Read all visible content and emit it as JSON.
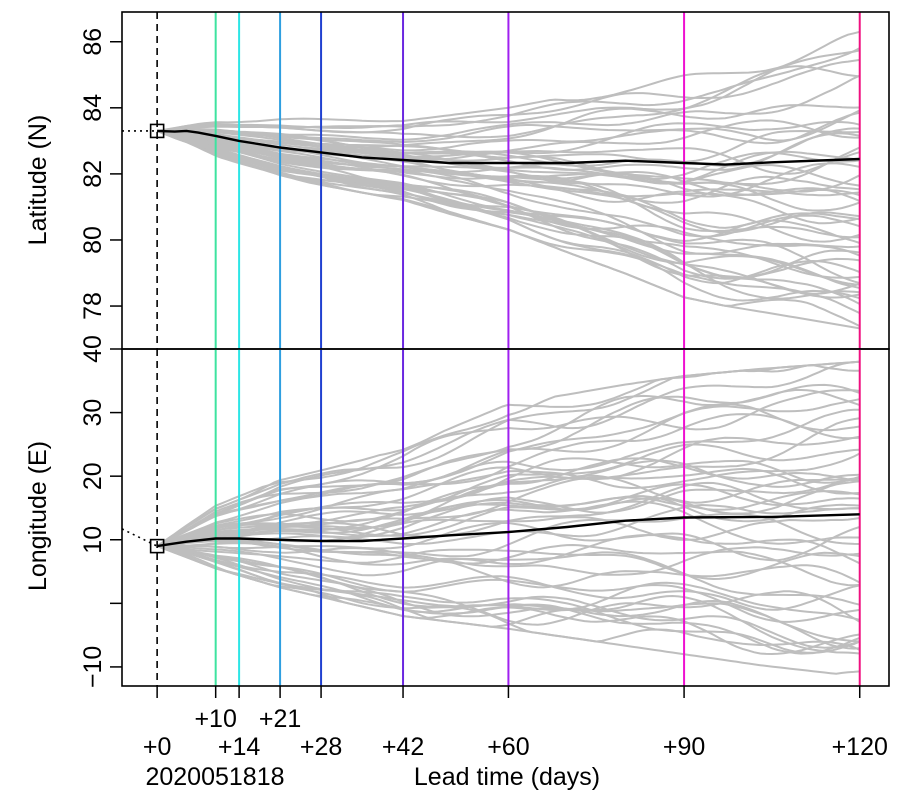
{
  "chart_data": {
    "type": "line",
    "x_label": "Lead time (days)",
    "start_date_label": "2020051818",
    "x_range": [
      -6,
      125
    ],
    "lead_times": [
      {
        "lead": 0,
        "label": "+0",
        "row": 1,
        "color": "#000000",
        "dashed": true
      },
      {
        "lead": 10,
        "label": "+10",
        "row": 0,
        "color": "#3ee3a0"
      },
      {
        "lead": 14,
        "label": "+14",
        "row": 1,
        "color": "#2ce5e5"
      },
      {
        "lead": 21,
        "label": "+21",
        "row": 0,
        "color": "#2f9fe0"
      },
      {
        "lead": 28,
        "label": "+28",
        "row": 1,
        "color": "#2040d0"
      },
      {
        "lead": 42,
        "label": "+42",
        "row": 1,
        "color": "#6a28e0"
      },
      {
        "lead": 60,
        "label": "+60",
        "row": 1,
        "color": "#a020f0"
      },
      {
        "lead": 90,
        "label": "+90",
        "row": 1,
        "color": "#ee10d0"
      },
      {
        "lead": 120,
        "label": "+120",
        "row": 1,
        "color": "#f01080"
      }
    ],
    "ensemble_color": "#bebebe",
    "mean_color": "#000000",
    "panels": [
      {
        "id": "latitude",
        "y_label": "Latitude (N)",
        "y_range": [
          76.7,
          86.9
        ],
        "y_ticks": [
          78,
          80,
          82,
          84,
          86
        ],
        "ensemble_min": [
          [
            0,
            83.3
          ],
          [
            10,
            82.5
          ],
          [
            21,
            81.9
          ],
          [
            42,
            81.2
          ],
          [
            60,
            80.2
          ],
          [
            90,
            77.8
          ],
          [
            120,
            76.9
          ]
        ],
        "ensemble_max": [
          [
            0,
            83.3
          ],
          [
            10,
            83.6
          ],
          [
            21,
            83.7
          ],
          [
            42,
            83.6
          ],
          [
            60,
            84.0
          ],
          [
            90,
            85.0
          ],
          [
            120,
            86.3
          ]
        ],
        "mean": [
          [
            0,
            83.3
          ],
          [
            3,
            83.28
          ],
          [
            5,
            83.3
          ],
          [
            7,
            83.25
          ],
          [
            10,
            83.15
          ],
          [
            14,
            83.0
          ],
          [
            21,
            82.8
          ],
          [
            28,
            82.65
          ],
          [
            35,
            82.5
          ],
          [
            42,
            82.42
          ],
          [
            50,
            82.33
          ],
          [
            60,
            82.33
          ],
          [
            70,
            82.33
          ],
          [
            80,
            82.4
          ],
          [
            90,
            82.33
          ],
          [
            97,
            82.28
          ],
          [
            105,
            82.35
          ],
          [
            120,
            82.45
          ]
        ],
        "initial_point": [
          0,
          83.3
        ],
        "prior_track": [
          [
            -6,
            83.3
          ],
          [
            0,
            83.3
          ]
        ]
      },
      {
        "id": "longitude",
        "y_label": "Longitude (E)",
        "y_range": [
          -13,
          40
        ],
        "y_ticks": [
          -10,
          0,
          10,
          20,
          30,
          40
        ],
        "y_tick_labels": [
          "−10",
          "",
          "10",
          "20",
          "30",
          "40"
        ],
        "ensemble_min": [
          [
            0,
            9.0
          ],
          [
            10,
            5.5
          ],
          [
            21,
            2.5
          ],
          [
            42,
            -2.0
          ],
          [
            60,
            -4.0
          ],
          [
            90,
            -8.0
          ],
          [
            120,
            -12.0
          ]
        ],
        "ensemble_max": [
          [
            0,
            9.0
          ],
          [
            10,
            15.5
          ],
          [
            21,
            20.0
          ],
          [
            42,
            25.0
          ],
          [
            60,
            33.0
          ],
          [
            90,
            36.0
          ],
          [
            120,
            38.0
          ]
        ],
        "mean": [
          [
            0,
            9.0
          ],
          [
            5,
            9.7
          ],
          [
            10,
            10.2
          ],
          [
            14,
            10.2
          ],
          [
            21,
            10.0
          ],
          [
            28,
            9.8
          ],
          [
            35,
            9.8
          ],
          [
            42,
            10.2
          ],
          [
            50,
            10.7
          ],
          [
            60,
            11.2
          ],
          [
            70,
            12.0
          ],
          [
            80,
            13.0
          ],
          [
            90,
            13.5
          ],
          [
            105,
            13.6
          ],
          [
            120,
            14.0
          ]
        ],
        "initial_point": [
          0,
          9.0
        ],
        "prior_track": [
          [
            -6,
            11.7
          ],
          [
            0,
            9.0
          ]
        ]
      }
    ]
  }
}
